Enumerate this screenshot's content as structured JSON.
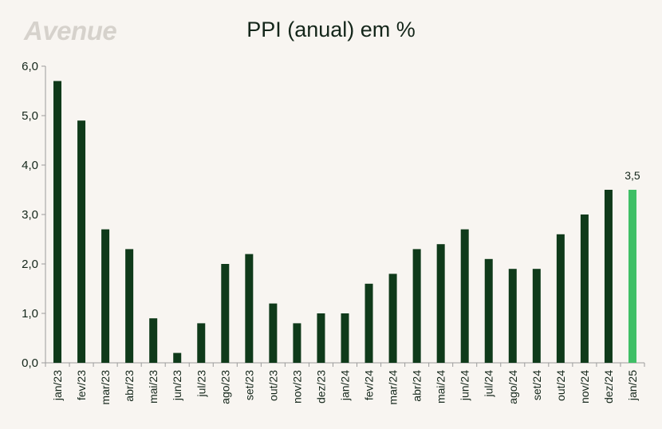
{
  "brand": {
    "logo_text": "Avenue"
  },
  "chart_data": {
    "type": "bar",
    "title": "PPI (anual) em %",
    "xlabel": "",
    "ylabel": "",
    "ylim": [
      0,
      6
    ],
    "yticks": [
      "0,0",
      "1,0",
      "2,0",
      "3,0",
      "4,0",
      "5,0",
      "6,0"
    ],
    "grid": false,
    "categories": [
      "jan/23",
      "fev/23",
      "mar/23",
      "abr/23",
      "mai/23",
      "jun/23",
      "jul/23",
      "ago/23",
      "set/23",
      "out/23",
      "nov/23",
      "dez/23",
      "jan/24",
      "fev/24",
      "mar/24",
      "abr/24",
      "mai/24",
      "jun/24",
      "jul/24",
      "ago/24",
      "set/24",
      "out/24",
      "nov/24",
      "dez/24",
      "jan/25"
    ],
    "values": [
      5.7,
      4.9,
      2.7,
      2.3,
      0.9,
      0.2,
      0.8,
      2.0,
      2.2,
      1.2,
      0.8,
      1.0,
      1.0,
      1.6,
      1.8,
      2.3,
      2.4,
      2.7,
      2.1,
      1.9,
      1.9,
      2.6,
      3.0,
      3.5,
      3.5
    ],
    "highlight_index": 24,
    "data_labels": [
      {
        "index": 24,
        "text": "3,5"
      }
    ],
    "colors": {
      "bar": "#0f3a1a",
      "highlight": "#3fbf66",
      "axis": "#9c9c9c",
      "text": "#14261a"
    }
  }
}
